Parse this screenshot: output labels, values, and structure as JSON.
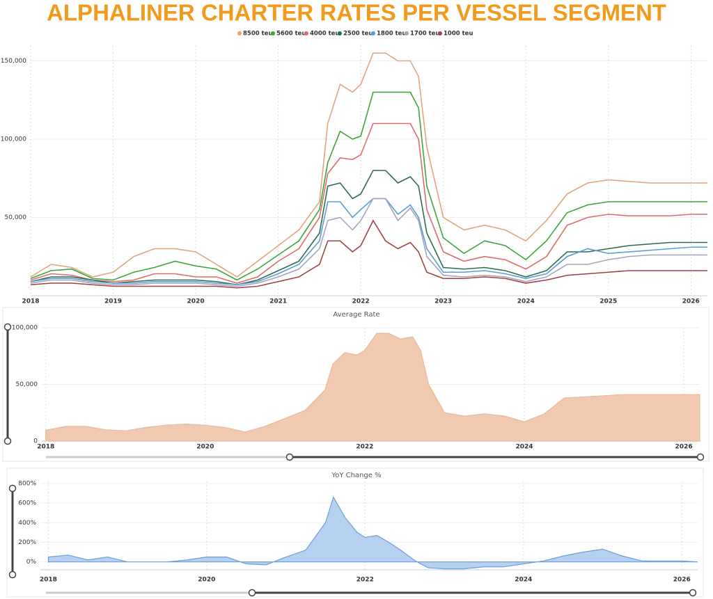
{
  "chart_data": [
    {
      "type": "line",
      "title": "ALPHALINER CHARTER RATES PER VESSEL SEGMENT",
      "x": [
        2018,
        2018.25,
        2018.5,
        2018.75,
        2019,
        2019.25,
        2019.5,
        2019.75,
        2020,
        2020.25,
        2020.5,
        2020.75,
        2021,
        2021.25,
        2021.5,
        2021.6,
        2021.75,
        2021.9,
        2022,
        2022.15,
        2022.3,
        2022.45,
        2022.6,
        2022.7,
        2022.8,
        2023,
        2023.25,
        2023.5,
        2023.75,
        2024,
        2024.25,
        2024.5,
        2024.75,
        2025,
        2025.25,
        2025.5,
        2025.75,
        2026,
        2026.2
      ],
      "series": [
        {
          "name": "8500 teu",
          "color": "#e3a37c",
          "values": [
            12000,
            20000,
            18000,
            12000,
            15000,
            25000,
            30000,
            30000,
            28000,
            20000,
            12000,
            22000,
            32000,
            42000,
            60000,
            110000,
            135000,
            130000,
            135000,
            155000,
            155000,
            150000,
            150000,
            140000,
            95000,
            50000,
            42000,
            45000,
            42000,
            35000,
            48000,
            65000,
            72000,
            74000,
            73000,
            72000,
            72000,
            72000,
            72000
          ]
        },
        {
          "name": "5600 teu",
          "color": "#3aa53a",
          "values": [
            11000,
            16000,
            17000,
            11000,
            10000,
            15000,
            18000,
            22000,
            19000,
            17000,
            10000,
            17000,
            26000,
            35000,
            55000,
            85000,
            105000,
            100000,
            102000,
            130000,
            130000,
            130000,
            130000,
            120000,
            70000,
            37000,
            27000,
            35000,
            32000,
            23000,
            35000,
            53000,
            58000,
            60000,
            60000,
            60000,
            60000,
            60000,
            60000
          ]
        },
        {
          "name": "4000 teu",
          "color": "#e06a6a",
          "values": [
            10000,
            14000,
            13000,
            10000,
            9000,
            10000,
            14000,
            14000,
            12000,
            12000,
            8000,
            12000,
            22000,
            30000,
            50000,
            78000,
            88000,
            87000,
            90000,
            110000,
            110000,
            110000,
            110000,
            100000,
            55000,
            28000,
            22000,
            25000,
            23000,
            17000,
            25000,
            45000,
            50000,
            52000,
            51000,
            51000,
            51000,
            52000,
            52000
          ]
        },
        {
          "name": "2500 teu",
          "color": "#2e6b4e",
          "values": [
            9000,
            12000,
            12000,
            10000,
            8000,
            9000,
            10000,
            10000,
            10000,
            9000,
            7000,
            10000,
            16000,
            22000,
            40000,
            70000,
            72000,
            62000,
            65000,
            80000,
            80000,
            72000,
            76000,
            70000,
            40000,
            18000,
            17000,
            18000,
            16000,
            12000,
            16000,
            28000,
            28000,
            30000,
            32000,
            33000,
            34000,
            34000,
            34000
          ]
        },
        {
          "name": "1800 teu",
          "color": "#5b9bd5",
          "values": [
            9000,
            11000,
            11000,
            9000,
            8000,
            8000,
            9000,
            9000,
            9000,
            8000,
            7000,
            9000,
            14000,
            20000,
            35000,
            60000,
            60000,
            50000,
            55000,
            62000,
            62000,
            52000,
            58000,
            50000,
            30000,
            15000,
            15000,
            16000,
            14000,
            11000,
            14000,
            25000,
            30000,
            27000,
            28000,
            29000,
            30000,
            31000,
            31000
          ]
        },
        {
          "name": "1700 teu",
          "color": "#a3a3bb",
          "values": [
            8000,
            10000,
            10000,
            8000,
            7000,
            7000,
            8000,
            8000,
            8000,
            7000,
            6000,
            8000,
            12000,
            17000,
            30000,
            48000,
            50000,
            42000,
            48000,
            62000,
            62000,
            48000,
            56000,
            48000,
            25000,
            13000,
            12000,
            13000,
            12000,
            9000,
            12000,
            20000,
            20000,
            23000,
            25000,
            26000,
            26000,
            26000,
            26000
          ]
        },
        {
          "name": "1000 teu",
          "color": "#a04040",
          "values": [
            7000,
            8000,
            8000,
            7000,
            6000,
            6000,
            6000,
            6000,
            6000,
            6000,
            5000,
            6000,
            9000,
            12000,
            20000,
            35000,
            35000,
            28000,
            32000,
            48000,
            35000,
            30000,
            34000,
            28000,
            15000,
            11000,
            11000,
            12000,
            11000,
            8000,
            10000,
            13000,
            14000,
            15000,
            16000,
            16000,
            16000,
            16000,
            16000
          ]
        }
      ],
      "xlim": [
        2018,
        2026.2
      ],
      "ylim": [
        0,
        160000
      ],
      "xticks": [
        2018,
        2019,
        2020,
        2021,
        2022,
        2023,
        2024,
        2025,
        2026
      ],
      "yticks": [
        {
          "value": 50000,
          "label": "50,000"
        },
        {
          "value": 100000,
          "label": "100,000"
        },
        {
          "value": 150000,
          "label": "150,000"
        }
      ],
      "grid": true
    },
    {
      "type": "area",
      "title": "Average Rate",
      "x": [
        2018,
        2018.25,
        2018.5,
        2018.75,
        2019,
        2019.25,
        2019.5,
        2019.75,
        2020,
        2020.25,
        2020.5,
        2020.75,
        2021,
        2021.25,
        2021.5,
        2021.6,
        2021.75,
        2021.9,
        2022,
        2022.15,
        2022.3,
        2022.45,
        2022.6,
        2022.7,
        2022.8,
        2023,
        2023.25,
        2023.5,
        2023.75,
        2024,
        2024.25,
        2024.5,
        2024.75,
        2025,
        2025.25,
        2025.5,
        2025.75,
        2026,
        2026.2
      ],
      "values": [
        9500,
        13000,
        13000,
        10000,
        9000,
        12000,
        14000,
        15000,
        14000,
        12000,
        8000,
        13000,
        20000,
        27000,
        45000,
        68000,
        78000,
        76000,
        80000,
        95000,
        95000,
        90000,
        92000,
        80000,
        50000,
        25000,
        22000,
        24000,
        22000,
        17000,
        24000,
        38000,
        39000,
        40000,
        41000,
        41000,
        41000,
        41000,
        41000
      ],
      "color": "#f0c9b0",
      "xlim": [
        2017.95,
        2026.2
      ],
      "ylim": [
        0,
        100000
      ],
      "xticks": [
        2018,
        2020,
        2022,
        2024,
        2026
      ],
      "yticks": [
        0,
        {
          "value": 50000,
          "label": "50,000"
        },
        {
          "value": 100000,
          "label": "100,000"
        }
      ],
      "grid": true
    },
    {
      "type": "area",
      "title": "YoY Change %",
      "x": [
        2018,
        2018.25,
        2018.5,
        2018.75,
        2019,
        2019.25,
        2019.5,
        2019.75,
        2020,
        2020.25,
        2020.5,
        2020.75,
        2021,
        2021.25,
        2021.5,
        2021.6,
        2021.75,
        2021.9,
        2022,
        2022.15,
        2022.3,
        2022.45,
        2022.6,
        2022.7,
        2022.8,
        2023,
        2023.25,
        2023.5,
        2023.75,
        2024,
        2024.25,
        2024.5,
        2024.75,
        2025,
        2025.25,
        2025.5,
        2025.75,
        2026,
        2026.2
      ],
      "values": [
        50,
        70,
        20,
        50,
        0,
        0,
        0,
        20,
        50,
        50,
        -20,
        -30,
        50,
        120,
        400,
        660,
        450,
        300,
        250,
        270,
        200,
        120,
        30,
        -20,
        -60,
        -70,
        -70,
        -50,
        -50,
        -20,
        10,
        60,
        100,
        130,
        60,
        10,
        10,
        10,
        0
      ],
      "color": "#b6d0ef",
      "xlim": [
        2017.9,
        2026.2
      ],
      "ylim": [
        -80,
        820
      ],
      "xticks": [
        2018,
        2020,
        2022,
        2024,
        2026
      ],
      "yticks": [
        {
          "value": 0,
          "label": "0%"
        },
        {
          "value": 200,
          "label": "200%"
        },
        {
          "value": 400,
          "label": "400%"
        },
        {
          "value": 600,
          "label": "600%"
        },
        {
          "value": 800,
          "label": "800%"
        }
      ],
      "grid": true
    }
  ]
}
